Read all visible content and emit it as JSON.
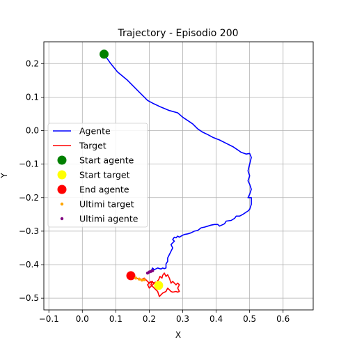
{
  "chart_data": {
    "type": "line",
    "title": "Trajectory - Episodio 200",
    "xlabel": "X",
    "ylabel": "Y",
    "xlim": [
      -0.115,
      0.69
    ],
    "ylim": [
      -0.535,
      0.265
    ],
    "xticks": [
      -0.1,
      0.0,
      0.1,
      0.2,
      0.3,
      0.4,
      0.5,
      0.6
    ],
    "xtick_labels": [
      "−0.1",
      "0.0",
      "0.1",
      "0.2",
      "0.3",
      "0.4",
      "0.5",
      "0.6"
    ],
    "yticks": [
      0.2,
      0.1,
      0.0,
      -0.1,
      -0.2,
      -0.3,
      -0.4,
      -0.5
    ],
    "ytick_labels": [
      "0.2",
      "0.1",
      "0.0",
      "−0.1",
      "−0.2",
      "−0.3",
      "−0.4",
      "−0.5"
    ],
    "grid": true,
    "legend_position": "center-left",
    "series": [
      {
        "name": "Agente",
        "kind": "line",
        "color": "#0000ff",
        "x": [
          0.065,
          0.085,
          0.105,
          0.135,
          0.165,
          0.195,
          0.21,
          0.235,
          0.26,
          0.285,
          0.3,
          0.315,
          0.33,
          0.345,
          0.36,
          0.375,
          0.39,
          0.41,
          0.43,
          0.45,
          0.465,
          0.475,
          0.49,
          0.5,
          0.505,
          0.5,
          0.495,
          0.5,
          0.495,
          0.5,
          0.505,
          0.5,
          0.495,
          0.505,
          0.505,
          0.5,
          0.495,
          0.49,
          0.48,
          0.47,
          0.46,
          0.455,
          0.445,
          0.43,
          0.425,
          0.41,
          0.405,
          0.395,
          0.385,
          0.375,
          0.365,
          0.355,
          0.345,
          0.335,
          0.325,
          0.315,
          0.305,
          0.3,
          0.29,
          0.285,
          0.28,
          0.275,
          0.27,
          0.275,
          0.265,
          0.27,
          0.265,
          0.26,
          0.255,
          0.255,
          0.25,
          0.25,
          0.245,
          0.24,
          0.235,
          0.225,
          0.215,
          0.21,
          0.205,
          0.2,
          0.195
        ],
        "y": [
          0.228,
          0.2,
          0.175,
          0.15,
          0.12,
          0.09,
          0.082,
          0.07,
          0.06,
          0.053,
          0.04,
          0.03,
          0.02,
          0.005,
          -0.005,
          -0.012,
          -0.02,
          -0.028,
          -0.038,
          -0.048,
          -0.058,
          -0.065,
          -0.07,
          -0.068,
          -0.08,
          -0.1,
          -0.12,
          -0.135,
          -0.15,
          -0.16,
          -0.175,
          -0.19,
          -0.2,
          -0.2,
          -0.22,
          -0.235,
          -0.24,
          -0.243,
          -0.25,
          -0.255,
          -0.255,
          -0.262,
          -0.268,
          -0.27,
          -0.278,
          -0.285,
          -0.28,
          -0.28,
          -0.282,
          -0.285,
          -0.288,
          -0.29,
          -0.298,
          -0.3,
          -0.305,
          -0.308,
          -0.31,
          -0.312,
          -0.318,
          -0.315,
          -0.32,
          -0.318,
          -0.325,
          -0.33,
          -0.34,
          -0.35,
          -0.36,
          -0.37,
          -0.38,
          -0.39,
          -0.398,
          -0.41,
          -0.412,
          -0.41,
          -0.413,
          -0.41,
          -0.415,
          -0.41,
          -0.42,
          -0.422,
          -0.425
        ]
      },
      {
        "name": "Target",
        "kind": "line",
        "color": "#ff0000",
        "x": [
          0.145,
          0.16,
          0.175,
          0.185,
          0.195,
          0.2,
          0.21,
          0.205,
          0.215,
          0.22,
          0.225,
          0.23,
          0.235,
          0.24,
          0.25,
          0.255,
          0.26,
          0.265,
          0.27,
          0.28,
          0.285,
          0.29,
          0.285,
          0.29,
          0.285,
          0.28,
          0.27,
          0.265,
          0.26,
          0.255,
          0.25,
          0.245,
          0.24,
          0.238,
          0.232,
          0.228,
          0.225,
          0.222,
          0.218,
          0.21,
          0.205,
          0.2,
          0.198,
          0.195,
          0.2,
          0.205,
          0.21,
          0.215,
          0.22,
          0.225
        ],
        "y": [
          -0.433,
          -0.44,
          -0.445,
          -0.44,
          -0.45,
          -0.455,
          -0.45,
          -0.46,
          -0.47,
          -0.475,
          -0.48,
          -0.495,
          -0.49,
          -0.485,
          -0.48,
          -0.47,
          -0.475,
          -0.48,
          -0.482,
          -0.48,
          -0.482,
          -0.48,
          -0.47,
          -0.46,
          -0.455,
          -0.46,
          -0.45,
          -0.455,
          -0.44,
          -0.43,
          -0.435,
          -0.425,
          -0.432,
          -0.44,
          -0.435,
          -0.445,
          -0.448,
          -0.455,
          -0.452,
          -0.46,
          -0.465,
          -0.47,
          -0.465,
          -0.46,
          -0.455,
          -0.45,
          -0.452,
          -0.455,
          -0.46,
          -0.462
        ]
      },
      {
        "name": "Start agente",
        "kind": "marker",
        "color": "#008000",
        "x": [
          0.065
        ],
        "y": [
          0.228
        ]
      },
      {
        "name": "Start target",
        "kind": "marker",
        "color": "#ffff00",
        "x": [
          0.228
        ],
        "y": [
          -0.462
        ]
      },
      {
        "name": "End agente",
        "kind": "marker",
        "color": "#ff0000",
        "x": [
          0.145
        ],
        "y": [
          -0.433
        ]
      },
      {
        "name": "Ultimi target",
        "kind": "scatter",
        "color": "#ffa500",
        "x": [
          0.16,
          0.17,
          0.178,
          0.185
        ],
        "y": [
          -0.44,
          -0.443,
          -0.446,
          -0.445
        ]
      },
      {
        "name": "Ultimi agente",
        "kind": "scatter",
        "color": "#800080",
        "x": [
          0.195,
          0.2,
          0.205,
          0.21
        ],
        "y": [
          -0.425,
          -0.422,
          -0.42,
          -0.418
        ]
      }
    ]
  }
}
